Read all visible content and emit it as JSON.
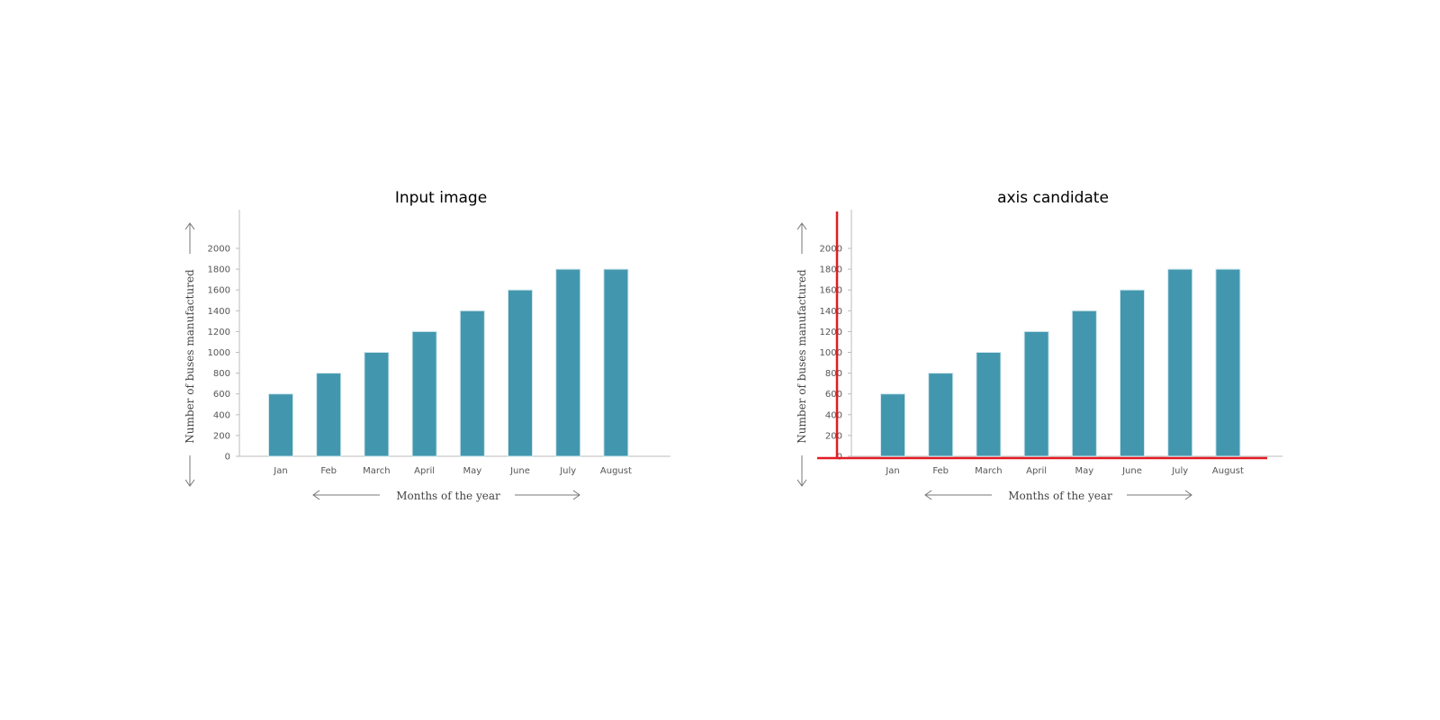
{
  "panels": [
    {
      "title": "Input image",
      "highlight_axes": false
    },
    {
      "title": "axis candidate",
      "highlight_axes": true
    }
  ],
  "colors": {
    "bar": "#4297AE",
    "bar_edge": "#2F7F95",
    "axis": "#BBBBBB",
    "highlight": "#E31B23",
    "text": "#555555"
  },
  "chart_data": [
    {
      "type": "bar",
      "title": "",
      "xlabel": "Months of the year",
      "ylabel": "Number of buses manufactured",
      "categories": [
        "Jan",
        "Feb",
        "March",
        "April",
        "May",
        "June",
        "July",
        "August"
      ],
      "values": [
        600,
        800,
        1000,
        1200,
        1400,
        1600,
        1800,
        1800
      ],
      "yticks": [
        0,
        200,
        400,
        600,
        800,
        1000,
        1200,
        1400,
        1600,
        1800,
        2000
      ],
      "ylim": [
        0,
        2000
      ],
      "grid": false
    },
    {
      "type": "bar",
      "title": "",
      "xlabel": "Months of the year",
      "ylabel": "Number of buses manufactured",
      "categories": [
        "Jan",
        "Feb",
        "March",
        "April",
        "May",
        "June",
        "July",
        "August"
      ],
      "values": [
        600,
        800,
        1000,
        1200,
        1400,
        1600,
        1800,
        1800
      ],
      "yticks": [
        0,
        200,
        400,
        600,
        800,
        1000,
        1200,
        1400,
        1600,
        1800,
        2000
      ],
      "ylim": [
        0,
        2000
      ],
      "grid": false
    }
  ]
}
